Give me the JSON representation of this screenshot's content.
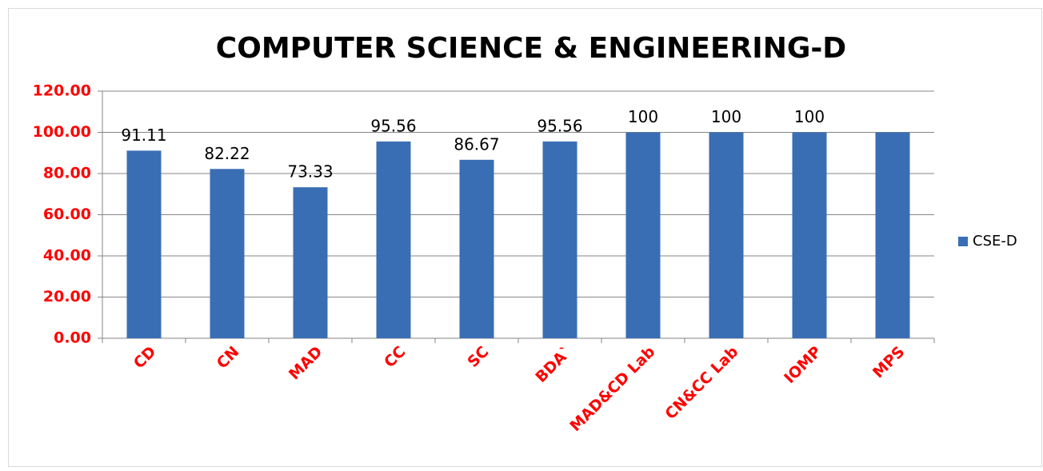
{
  "chart_data": {
    "type": "bar",
    "title": "COMPUTER SCIENCE & ENGINEERING-D",
    "categories": [
      "CD",
      "CN",
      "MAD",
      "CC",
      "SC",
      "BDA`",
      "MAD&CD Lab",
      "CN&CC Lab",
      "IOMP",
      "MPS"
    ],
    "series": [
      {
        "name": "CSE-D",
        "color": "#3a6eb4",
        "values": [
          91.11,
          82.22,
          73.33,
          95.56,
          86.67,
          95.56,
          100,
          100,
          100,
          100
        ],
        "value_labels": [
          "91.11",
          "82.22",
          "73.33",
          "95.56",
          "86.67",
          "95.56",
          "100",
          "100",
          "100",
          null
        ]
      }
    ],
    "ylim": [
      0,
      120
    ],
    "yticks": [
      {
        "value": 0,
        "label": "0.00"
      },
      {
        "value": 20,
        "label": "20.00"
      },
      {
        "value": 40,
        "label": "40.00"
      },
      {
        "value": 60,
        "label": "60.00"
      },
      {
        "value": 80,
        "label": "80.00"
      },
      {
        "value": 100,
        "label": "100.00"
      },
      {
        "value": 120,
        "label": "120.00"
      }
    ],
    "grid": true,
    "legend": "right"
  }
}
